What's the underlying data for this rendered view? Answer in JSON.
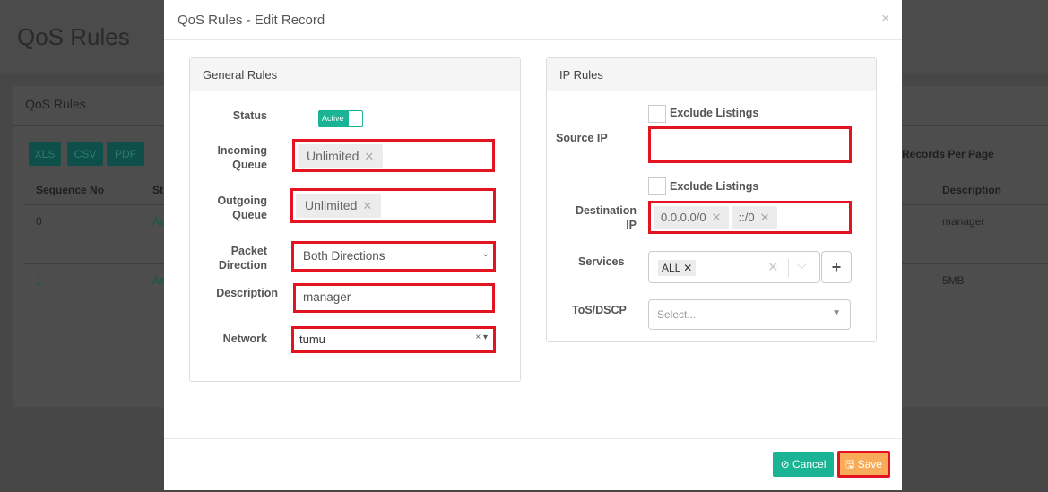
{
  "background": {
    "page_title": "QoS Rules",
    "card_title": "QoS Rules",
    "export_buttons": [
      "XLS",
      "CSV",
      "PDF"
    ],
    "records_per_page": "Records Per Page",
    "columns": {
      "sequence": "Sequence No",
      "status": "St",
      "description": "Description"
    },
    "rows": [
      {
        "seq": "0",
        "status": "Ac",
        "description": "manager"
      },
      {
        "seq": "1",
        "status": "Ac",
        "description": "5MB"
      }
    ]
  },
  "modal": {
    "title": "QoS Rules - Edit Record",
    "close": "×",
    "general": {
      "title": "General Rules",
      "status_label": "Status",
      "status_value": "Active",
      "incoming_label": "Incoming Queue",
      "incoming_tag": "Unlimited",
      "outgoing_label": "Outgoing Queue",
      "outgoing_tag": "Unlimited",
      "direction_label": "Packet Direction",
      "direction_value": "Both Directions",
      "description_label": "Description",
      "description_value": "manager",
      "network_label": "Network",
      "network_value": "tumu"
    },
    "ip": {
      "title": "IP Rules",
      "exclude_label": "Exclude Listings",
      "source_label": "Source IP",
      "destination_label": "Destination IP",
      "destination_tags": [
        "0.0.0.0/0",
        "::/0"
      ],
      "services_label": "Services",
      "services_tag": "ALL",
      "tos_label": "ToS/DSCP",
      "tos_placeholder": "Select..."
    },
    "cancel": "Cancel",
    "save": "Save"
  },
  "colors": {
    "accent": "#1ab394",
    "save": "#f8ac59",
    "highlight": "#e3141f"
  }
}
